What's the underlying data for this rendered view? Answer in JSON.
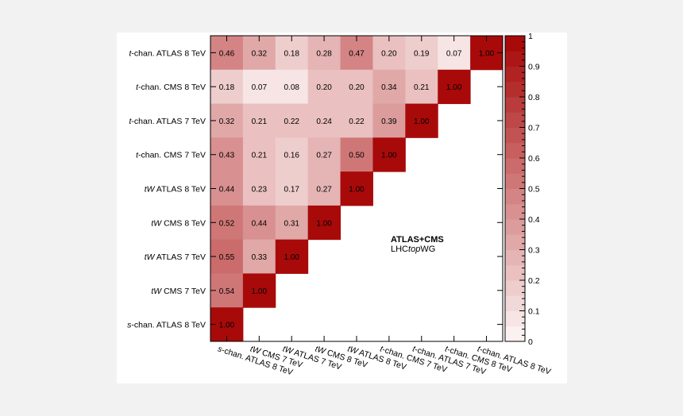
{
  "chart_data": {
    "type": "heatmap",
    "title": "",
    "xlabel": "",
    "ylabel": "",
    "rows": [
      "t-chan. ATLAS 8 TeV",
      "t-chan. CMS 8 TeV",
      "t-chan. ATLAS 7 TeV",
      "t-chan. CMS 7 TeV",
      "tW ATLAS 8 TeV",
      "tW CMS 8 TeV",
      "tW ATLAS 7 TeV",
      "tW CMS 7 TeV",
      "s-chan. ATLAS 8 TeV"
    ],
    "columns": [
      "s-chan. ATLAS 8 TeV",
      "tW CMS 7 TeV",
      "tW ATLAS 7 TeV",
      "tW CMS 8 TeV",
      "tW ATLAS 8 TeV",
      "t-chan. CMS 7 TeV",
      "t-chan. ATLAS 7 TeV",
      "t-chan. CMS 8 TeV",
      "t-chan. ATLAS 8 TeV"
    ],
    "values": [
      [
        0.46,
        0.32,
        0.18,
        0.28,
        0.47,
        0.2,
        0.19,
        0.07,
        1.0
      ],
      [
        0.18,
        0.07,
        0.08,
        0.2,
        0.2,
        0.34,
        0.21,
        1.0,
        null
      ],
      [
        0.32,
        0.21,
        0.22,
        0.24,
        0.22,
        0.39,
        1.0,
        null,
        null
      ],
      [
        0.43,
        0.21,
        0.16,
        0.27,
        0.5,
        1.0,
        null,
        null,
        null
      ],
      [
        0.44,
        0.23,
        0.17,
        0.27,
        1.0,
        null,
        null,
        null,
        null
      ],
      [
        0.52,
        0.44,
        0.31,
        1.0,
        null,
        null,
        null,
        null,
        null
      ],
      [
        0.55,
        0.33,
        1.0,
        null,
        null,
        null,
        null,
        null,
        null
      ],
      [
        0.54,
        1.0,
        null,
        null,
        null,
        null,
        null,
        null,
        null
      ],
      [
        1.0,
        null,
        null,
        null,
        null,
        null,
        null,
        null,
        null
      ]
    ],
    "colorbar": {
      "range": [
        0,
        1
      ],
      "tick_labels": [
        "0",
        "0.1",
        "0.2",
        "0.3",
        "0.4",
        "0.5",
        "0.6",
        "0.7",
        "0.8",
        "0.9",
        "1"
      ],
      "low_color": "#fbf1f1",
      "high_color": "#a80a0a",
      "bins": 20
    },
    "annotation": {
      "line1": "ATLAS+CMS",
      "line2_prefix": "LHC",
      "line2_italic": "top",
      "line2_suffix": "WG"
    }
  }
}
